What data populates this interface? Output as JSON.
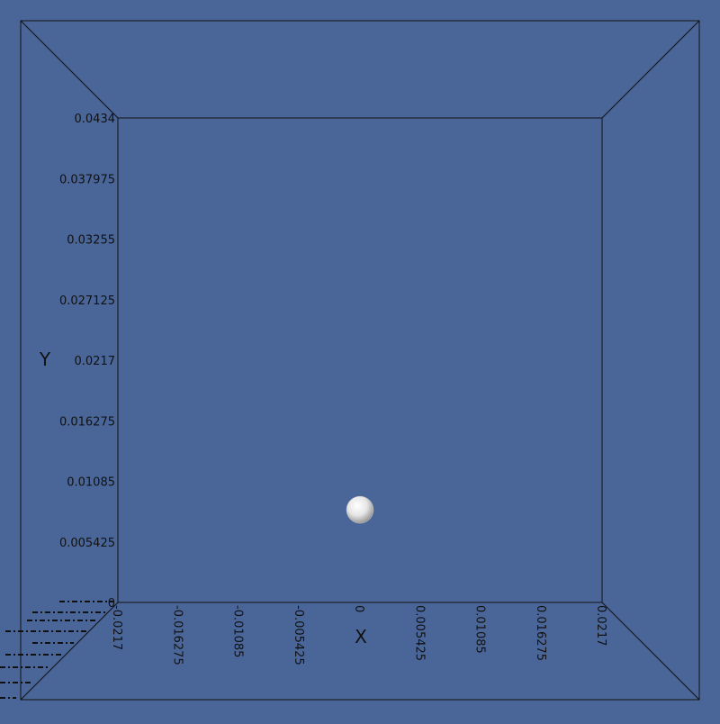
{
  "axes": {
    "x_label": "X",
    "y_label": "Y",
    "x_ticks": [
      "-0.0217",
      "-0.016275",
      "-0.01085",
      "-0.005425",
      "0",
      "0.005425",
      "0.01085",
      "0.016275",
      "0.0217"
    ],
    "y_ticks": [
      "0",
      "0.005425",
      "0.01085",
      "0.016275",
      "0.0217",
      "0.027125",
      "0.03255",
      "0.037975",
      "0.0434"
    ]
  },
  "sphere": {
    "x": 0.0,
    "y": 0.0083
  },
  "colors": {
    "background": "#4a6699",
    "lines": "#111111",
    "sphere": "#ffffff"
  }
}
